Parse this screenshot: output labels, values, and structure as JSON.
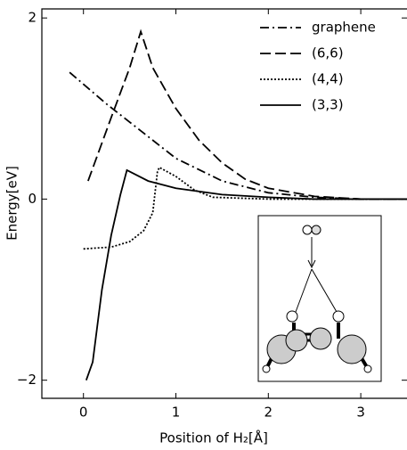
{
  "chart_data": {
    "type": "line",
    "xlabel": "Position of H₂[Å]",
    "ylabel": "Energy[eV]",
    "xlim": [
      -0.45,
      3.5
    ],
    "ylim": [
      -2.2,
      2.1
    ],
    "xticks": [
      0,
      1,
      2,
      3
    ],
    "yticks": [
      {
        "value": -2,
        "label": "−2"
      },
      0,
      2
    ],
    "legend": "upper right",
    "series": [
      {
        "name": "graphene",
        "color": "#000000",
        "linestyle": "dashdot",
        "x": [
          -0.15,
          0.25,
          0.5,
          1,
          1.5,
          2,
          2.5,
          3,
          3.5
        ],
        "values": [
          1.4,
          1.05,
          0.85,
          0.45,
          0.2,
          0.07,
          0.02,
          0,
          0
        ]
      },
      {
        "name": "(6,6)",
        "color": "#000000",
        "linestyle": "dashed",
        "x": [
          0.05,
          0.3,
          0.5,
          0.62,
          0.75,
          1,
          1.25,
          1.5,
          1.75,
          2,
          2.5,
          3,
          3.5
        ],
        "values": [
          0.2,
          0.9,
          1.45,
          1.85,
          1.45,
          1.0,
          0.65,
          0.4,
          0.22,
          0.12,
          0.03,
          0,
          0
        ]
      },
      {
        "name": "(4,4)",
        "color": "#000000",
        "linestyle": "dotted",
        "x": [
          0,
          0.3,
          0.5,
          0.65,
          0.75,
          0.8,
          0.82,
          1,
          1.2,
          1.4,
          2,
          3.5
        ],
        "values": [
          -0.55,
          -0.53,
          -0.47,
          -0.35,
          -0.15,
          0.3,
          0.35,
          0.25,
          0.1,
          0.02,
          0,
          0
        ]
      },
      {
        "name": "(3,3)",
        "color": "#000000",
        "linestyle": "solid",
        "x": [
          0.03,
          0.1,
          0.2,
          0.3,
          0.4,
          0.47,
          0.7,
          1,
          1.5,
          2,
          2.5,
          3.5
        ],
        "values": [
          -2,
          -1.8,
          -1.0,
          -0.4,
          0.05,
          0.32,
          0.2,
          0.12,
          0.05,
          0.02,
          0,
          0
        ]
      }
    ]
  }
}
